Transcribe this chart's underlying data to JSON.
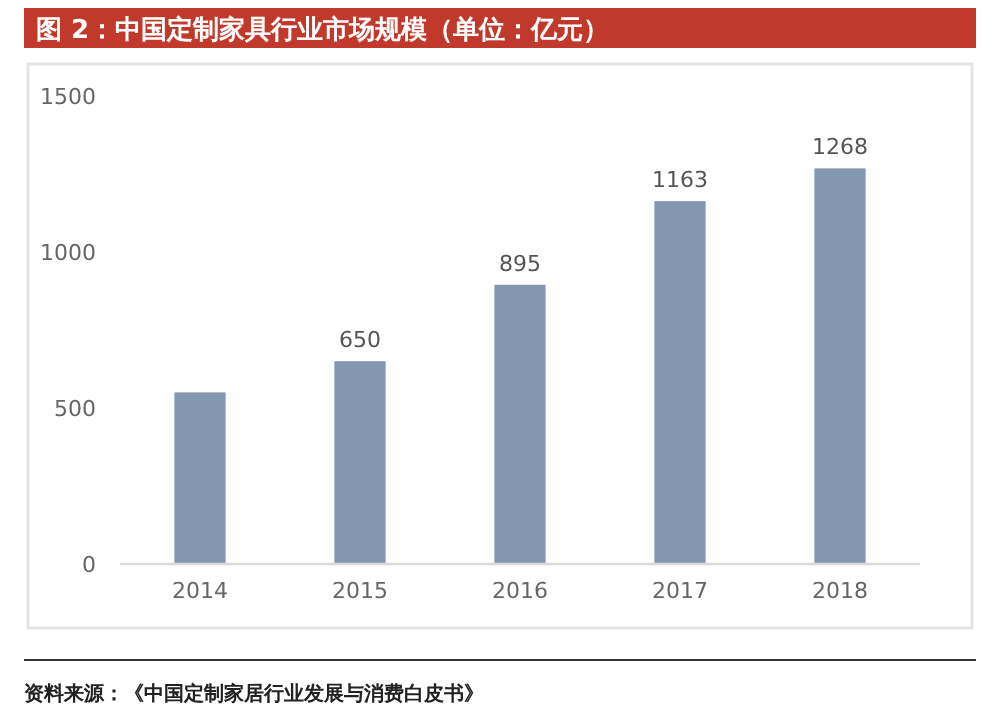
{
  "chart_data": {
    "type": "bar",
    "title": "图 2：中国定制家具行业市场规模（单位：亿元）",
    "categories": [
      "2014",
      "2015",
      "2016",
      "2017",
      "2018"
    ],
    "values": [
      550,
      650,
      895,
      1163,
      1268
    ],
    "value_labels": [
      null,
      "650",
      "895",
      "1163",
      "1268"
    ],
    "color": "#8497b0",
    "ylim": [
      0,
      1500
    ],
    "yticks": [
      0,
      500,
      1000,
      1500
    ],
    "grid": false,
    "annotations": [
      "资料来源：《中国定制家居行业发展与消费白皮书》"
    ]
  }
}
